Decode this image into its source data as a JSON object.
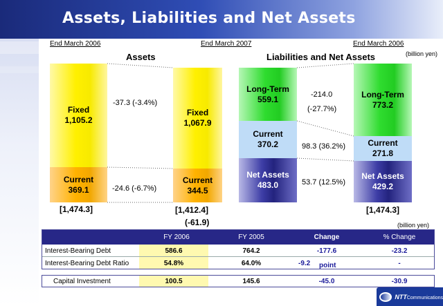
{
  "slide": {
    "title": "Assets, Liabilities and Net Assets"
  },
  "periods": {
    "left": "End March 2006",
    "middle": "End March 2007",
    "right": "End March 2006"
  },
  "headings": {
    "assets": "Assets",
    "liabilities": "Liabilities and Net Assets",
    "unit_top": "(billion yen)",
    "unit_bottom": "(billion yen)"
  },
  "colors": {
    "banner": "#2f4db5",
    "fixed": "#fff000",
    "current_assets": "#ffb200",
    "long_term": "#2fdc2f",
    "current_liabilities": "#bfdcf7",
    "net_assets": "#23237e",
    "table_header": "#272787"
  },
  "bars": {
    "assets_2006": {
      "fixed_label": "Fixed",
      "fixed_value": "1,105.2",
      "current_label": "Current",
      "current_value": "369.1",
      "total": "[1,474.3]"
    },
    "assets_2007": {
      "fixed_label": "Fixed",
      "fixed_value": "1,067.9",
      "current_label": "Current",
      "current_value": "344.5",
      "total": "[1,412.4]",
      "total_change": "(-61.9)"
    },
    "liab_2007": {
      "longterm_label": "Long-Term",
      "longterm_value": "559.1",
      "current_label": "Current",
      "current_value": "370.2",
      "net_label": "Net Assets",
      "net_value": "483.0"
    },
    "liab_2006": {
      "longterm_label": "Long-Term",
      "longterm_value": "773.2",
      "current_label": "Current",
      "current_value": "271.8",
      "net_label": "Net Assets",
      "net_value": "429.2",
      "total": "[1,474.3]"
    }
  },
  "changes": {
    "fixed": "-37.3 (-3.4%)",
    "current_assets": "-24.6 (-6.7%)",
    "longterm_amount": "-214.0",
    "longterm_pct": "(-27.7%)",
    "current_liabilities": "98.3 (36.2%)",
    "net_assets": "53.7 (12.5%)"
  },
  "table": {
    "headers": [
      "",
      "FY 2006",
      "FY 2005",
      "Change",
      "% Change"
    ],
    "rows": [
      {
        "label": "Interest-Bearing Debt",
        "fy2006": "586.6",
        "fy2005": "764.2",
        "change": "-177.6",
        "pct": "-23.2",
        "change_unit": ""
      },
      {
        "label": "Interest-Bearing Debt Ratio",
        "fy2006": "54.8%",
        "fy2005": "64.0%",
        "change": "-9.2",
        "pct": "-",
        "change_unit": "point"
      }
    ],
    "capex": {
      "label": "Capital Investment",
      "fy2006": "100.5",
      "fy2005": "145.6",
      "change": "-45.0",
      "pct": "-30.9"
    }
  },
  "logo": {
    "brand": "NTT",
    "name": "Communications",
    "icon": "ntt-logo-icon"
  }
}
